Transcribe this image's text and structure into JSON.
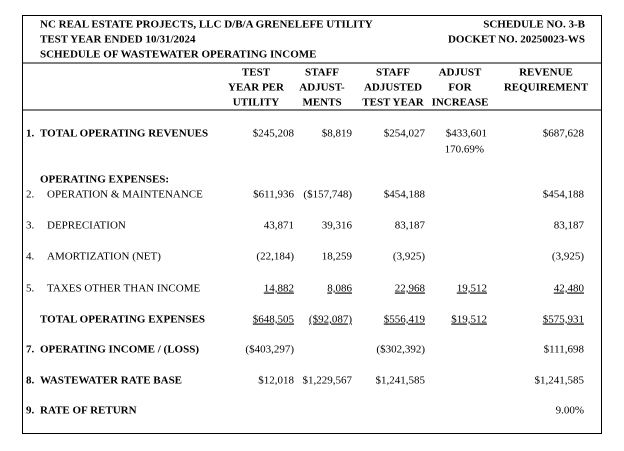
{
  "header": {
    "left": [
      "NC REAL ESTATE PROJECTS, LLC D/B/A GRENELEFE UTILITY",
      "TEST YEAR ENDED 10/31/2024",
      "SCHEDULE OF WASTEWATER OPERATING INCOME"
    ],
    "right": [
      "SCHEDULE NO. 3-B",
      "DOCKET NO. 20250023-WS"
    ]
  },
  "table": {
    "columns": [
      [
        "TEST",
        "YEAR PER",
        "UTILITY"
      ],
      [
        "STAFF",
        "ADJUST-",
        "MENTS"
      ],
      [
        "STAFF",
        "ADJUSTED",
        "TEST YEAR"
      ],
      [
        "ADJUST",
        "FOR",
        "INCREASE"
      ],
      [
        "REVENUE",
        "REQUIREMENT"
      ]
    ],
    "rows": [
      {
        "num": "1.",
        "label": "TOTAL OPERATING REVENUES",
        "bold": true,
        "cells": [
          "$245,208",
          "$8,819",
          "$254,027",
          "$433,601",
          "$687,628"
        ],
        "note": "170.69%"
      },
      {
        "label": "OPERATING EXPENSES:",
        "bold": true
      },
      {
        "num": "2.",
        "label": "OPERATION & MAINTENANCE",
        "cells": [
          "$611,936",
          "($157,748)",
          "$454,188",
          null,
          "$454,188"
        ]
      },
      {
        "num": "3.",
        "label": "DEPRECIATION",
        "cells": [
          "43,871",
          "39,316",
          "83,187",
          null,
          "83,187"
        ]
      },
      {
        "num": "4.",
        "label": "AMORTIZATION (NET)",
        "cells": [
          "(22,184)",
          "18,259",
          "(3,925)",
          null,
          "(3,925)"
        ]
      },
      {
        "num": "5.",
        "label": "TAXES OTHER THAN INCOME",
        "underline": true,
        "cells": [
          "14,882",
          "8,086",
          "22,968",
          "19,512",
          "42,480"
        ]
      },
      {
        "label": "TOTAL OPERATING EXPENSES",
        "bold": true,
        "underline": true,
        "cells": [
          "$648,505",
          "($92,087)",
          "$556,419",
          "$19,512",
          "$575,931"
        ]
      },
      {
        "num": "7.",
        "label": "OPERATING INCOME / (LOSS)",
        "bold": true,
        "cells": [
          "($403,297)",
          null,
          "($302,392)",
          null,
          "$111,698"
        ]
      },
      {
        "num": "8.",
        "label": "WASTEWATER RATE BASE",
        "bold": true,
        "cells": [
          "$12,018",
          "$1,229,567",
          "$1,241,585",
          null,
          "$1,241,585"
        ]
      },
      {
        "num": "9.",
        "label": "RATE OF RETURN",
        "bold": true,
        "cells": [
          null,
          null,
          null,
          null,
          "9.00%"
        ]
      }
    ]
  }
}
